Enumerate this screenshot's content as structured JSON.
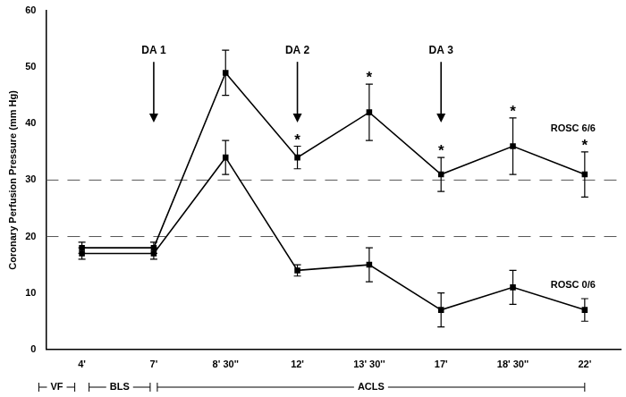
{
  "chart_data": {
    "type": "line",
    "y_label": "Coronary Perfusion Pressure (mm Hg)",
    "categories": [
      "4'",
      "7'",
      "8' 30''",
      "12'",
      "13' 30''",
      "17'",
      "18' 30''",
      "22'"
    ],
    "series": [
      {
        "name": "ROSC 6/6",
        "color": "#000000",
        "marker": "square",
        "line_style": "solid",
        "values": [
          18,
          18,
          49,
          34,
          42,
          31,
          36,
          31
        ],
        "errors": [
          1,
          1,
          4,
          2,
          5,
          3,
          5,
          4
        ]
      },
      {
        "name": "ROSC 0/6",
        "color": "#000000",
        "marker": "square",
        "line_style": "solid",
        "values": [
          17,
          17,
          34,
          14,
          15,
          7,
          11,
          7
        ],
        "errors": [
          1,
          1,
          3,
          1,
          3,
          3,
          3,
          2
        ]
      }
    ],
    "ylim": [
      0,
      60
    ],
    "yticks": [
      0,
      10,
      20,
      30,
      40,
      50,
      60
    ],
    "grid": false,
    "reference_lines": [
      20,
      30
    ],
    "arrows": [
      {
        "text": "DA 1",
        "category": "7'"
      },
      {
        "text": "DA 2",
        "category": "12'"
      },
      {
        "text": "DA 3",
        "category": "17'"
      }
    ],
    "annotations": [
      {
        "text": "*",
        "category": "12'",
        "series": "ROSC 6/6"
      },
      {
        "text": "*",
        "category": "13' 30''",
        "series": "ROSC 6/6"
      },
      {
        "text": "*",
        "category": "17'",
        "series": "ROSC 6/6"
      },
      {
        "text": "*",
        "category": "18' 30''",
        "series": "ROSC 6/6"
      },
      {
        "text": "*",
        "category": "22'",
        "series": "ROSC 6/6"
      }
    ],
    "phases": [
      {
        "label": "VF",
        "end": "4'"
      },
      {
        "label": "BLS",
        "start": "4'",
        "end": "7'"
      },
      {
        "label": "ACLS",
        "start": "7'",
        "end": "22'"
      }
    ]
  }
}
